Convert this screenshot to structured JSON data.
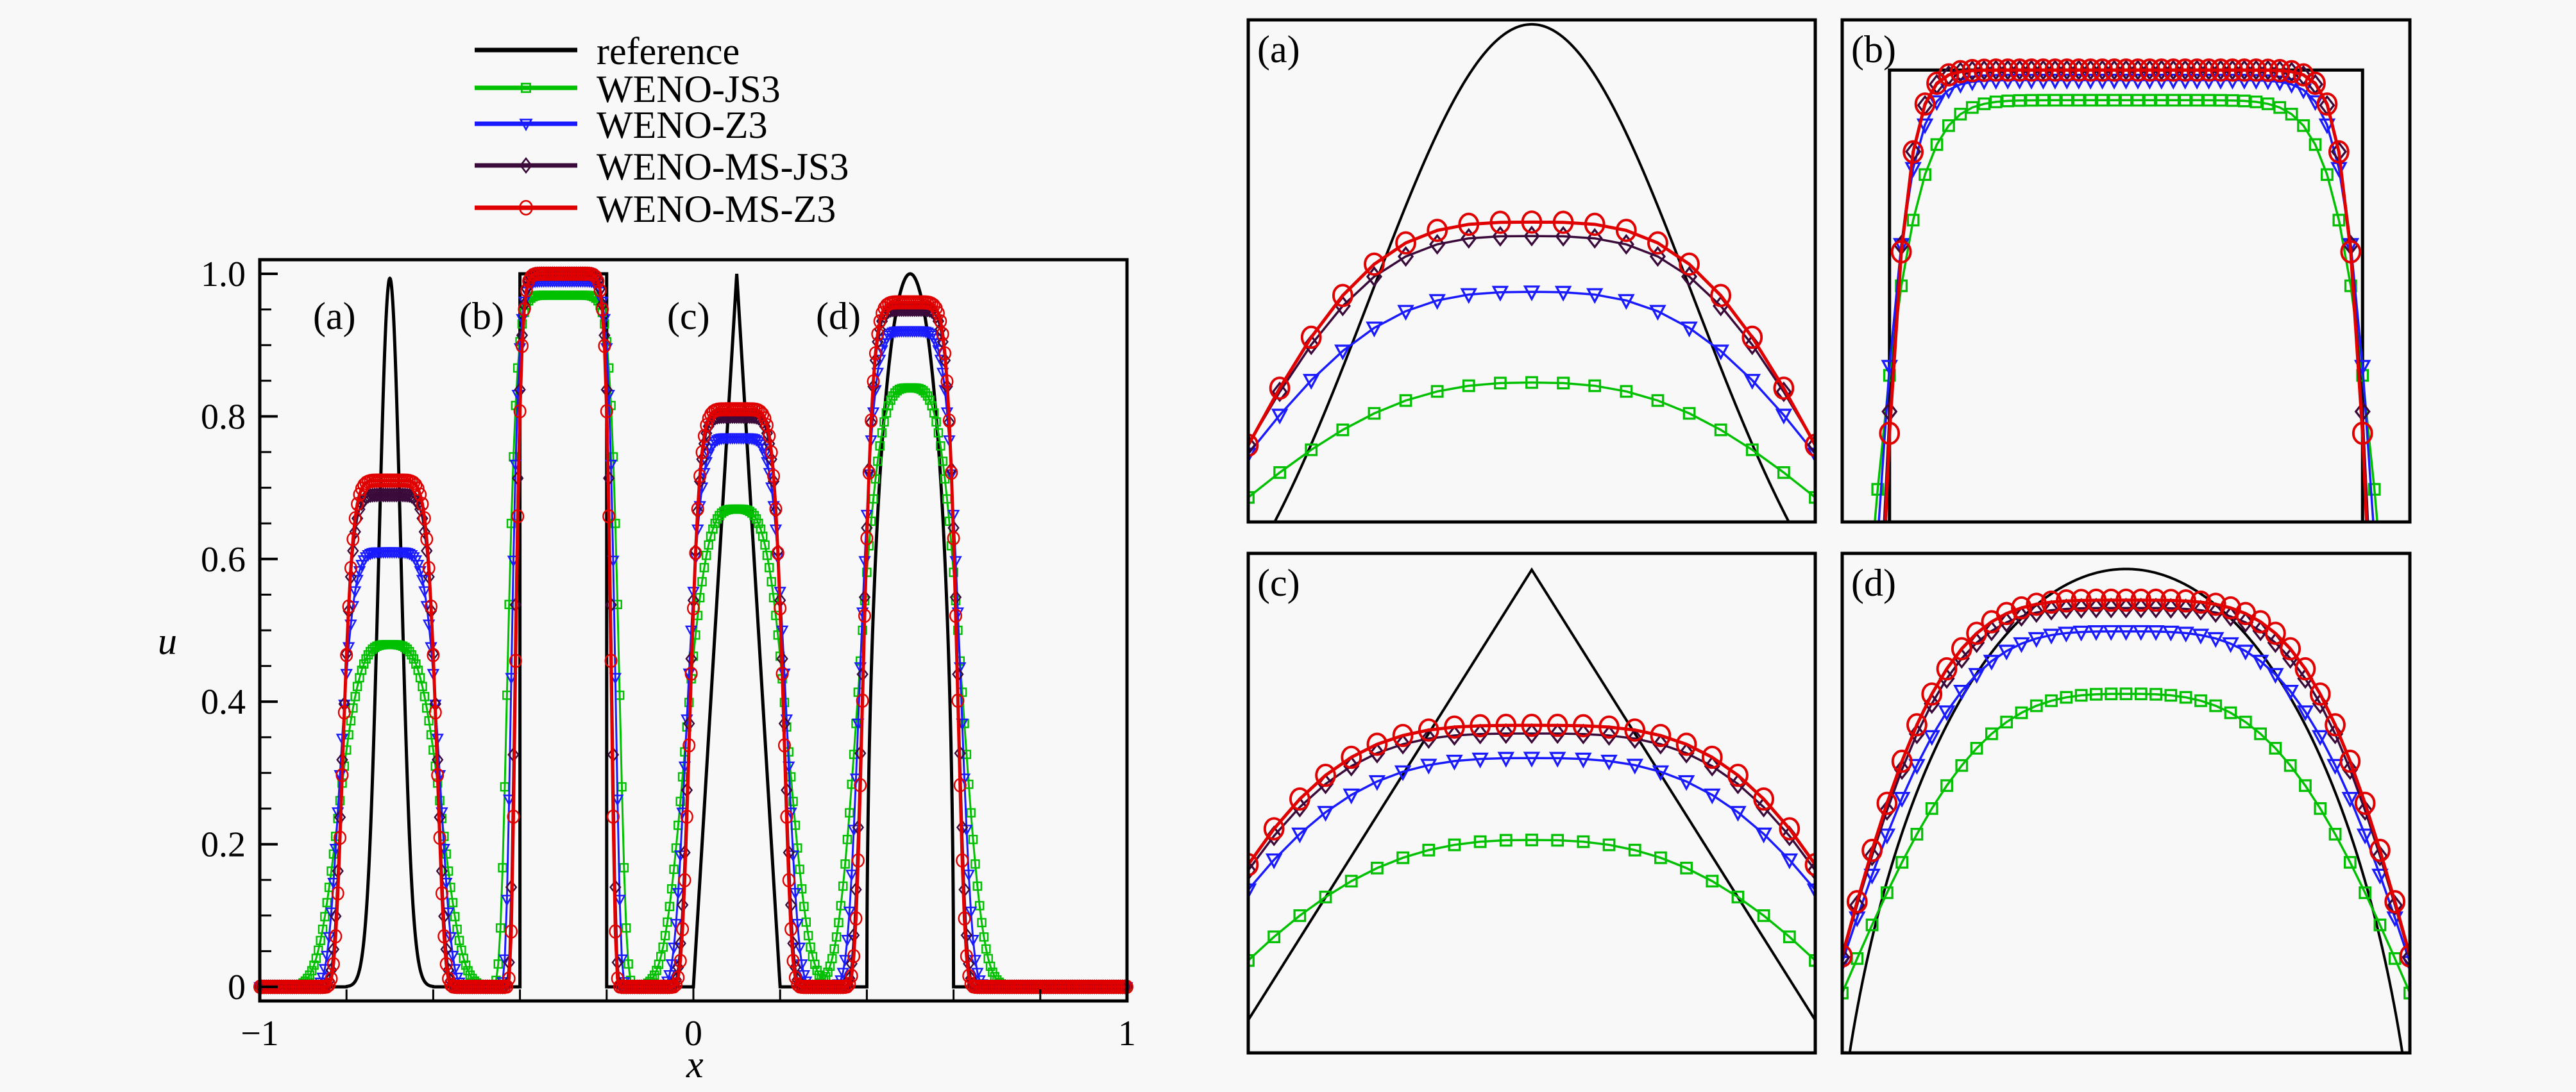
{
  "chart_data": [
    {
      "type": "line",
      "title": "",
      "xlabel": "x",
      "ylabel": "u",
      "xlim": [
        -1,
        1
      ],
      "ylim": [
        0,
        1.0
      ],
      "x_ticks": [
        "-1",
        "0",
        "1"
      ],
      "y_ticks": [
        "0",
        "0.2",
        "0.4",
        "0.6",
        "0.8",
        "1.0"
      ],
      "annotations": [
        "(a)",
        "(b)",
        "(c)",
        "(d)"
      ],
      "legend": {
        "placement": "top",
        "entries": [
          "reference",
          "WENO-JS3",
          "WENO-Z3",
          "WENO-MS-JS3",
          "WENO-MS-Z3"
        ]
      },
      "waves": [
        {
          "label": "(a)",
          "shape": "gaussian",
          "x_range": [
            -0.8,
            -0.6
          ],
          "center": -0.7
        },
        {
          "label": "(b)",
          "shape": "square",
          "x_range": [
            -0.4,
            -0.2
          ],
          "center": -0.3
        },
        {
          "label": "(c)",
          "shape": "triangle",
          "x_range": [
            0.0,
            0.2
          ],
          "center": 0.1
        },
        {
          "label": "(d)",
          "shape": "ellipse",
          "x_range": [
            0.4,
            0.6
          ],
          "center": 0.5
        }
      ],
      "series": [
        {
          "name": "reference",
          "color": "#000000",
          "marker": "none",
          "peaks": [
            1.0,
            1.0,
            1.0,
            1.0
          ]
        },
        {
          "name": "WENO-JS3",
          "color": "#00c000",
          "marker": "square",
          "peaks": [
            0.48,
            0.97,
            0.67,
            0.84
          ]
        },
        {
          "name": "WENO-Z3",
          "color": "#1a1aff",
          "marker": "triangle-down",
          "peaks": [
            0.61,
            0.99,
            0.77,
            0.92
          ]
        },
        {
          "name": "WENO-MS-JS3",
          "color": "#3a0a3a",
          "marker": "diamond",
          "peaks": [
            0.69,
            1.0,
            0.8,
            0.95
          ]
        },
        {
          "name": "WENO-MS-Z3",
          "color": "#e00000",
          "marker": "circle",
          "peaks": [
            0.71,
            1.0,
            0.81,
            0.96
          ]
        }
      ]
    },
    {
      "type": "line",
      "title": "(a)",
      "zoom_of": "(a)",
      "series": [
        {
          "name": "reference",
          "peak": 1.0
        },
        {
          "name": "WENO-JS3",
          "peak": 0.48
        },
        {
          "name": "WENO-Z3",
          "peak": 0.61
        },
        {
          "name": "WENO-MS-JS3",
          "peak": 0.69
        },
        {
          "name": "WENO-MS-Z3",
          "peak": 0.71
        }
      ]
    },
    {
      "type": "line",
      "title": "(b)",
      "zoom_of": "(b)",
      "series": [
        {
          "name": "reference",
          "peak": 1.0
        },
        {
          "name": "WENO-JS3",
          "peak": 0.97
        },
        {
          "name": "WENO-Z3",
          "peak": 0.99
        },
        {
          "name": "WENO-MS-JS3",
          "peak": 1.0
        },
        {
          "name": "WENO-MS-Z3",
          "peak": 1.0
        }
      ]
    },
    {
      "type": "line",
      "title": "(c)",
      "zoom_of": "(c)",
      "series": [
        {
          "name": "reference",
          "peak": 1.0
        },
        {
          "name": "WENO-JS3",
          "peak": 0.67
        },
        {
          "name": "WENO-Z3",
          "peak": 0.77
        },
        {
          "name": "WENO-MS-JS3",
          "peak": 0.8
        },
        {
          "name": "WENO-MS-Z3",
          "peak": 0.81
        }
      ]
    },
    {
      "type": "line",
      "title": "(d)",
      "zoom_of": "(d)",
      "series": [
        {
          "name": "reference",
          "peak": 1.0
        },
        {
          "name": "WENO-JS3",
          "peak": 0.84
        },
        {
          "name": "WENO-Z3",
          "peak": 0.92
        },
        {
          "name": "WENO-MS-JS3",
          "peak": 0.95
        },
        {
          "name": "WENO-MS-Z3",
          "peak": 0.96
        }
      ]
    }
  ]
}
